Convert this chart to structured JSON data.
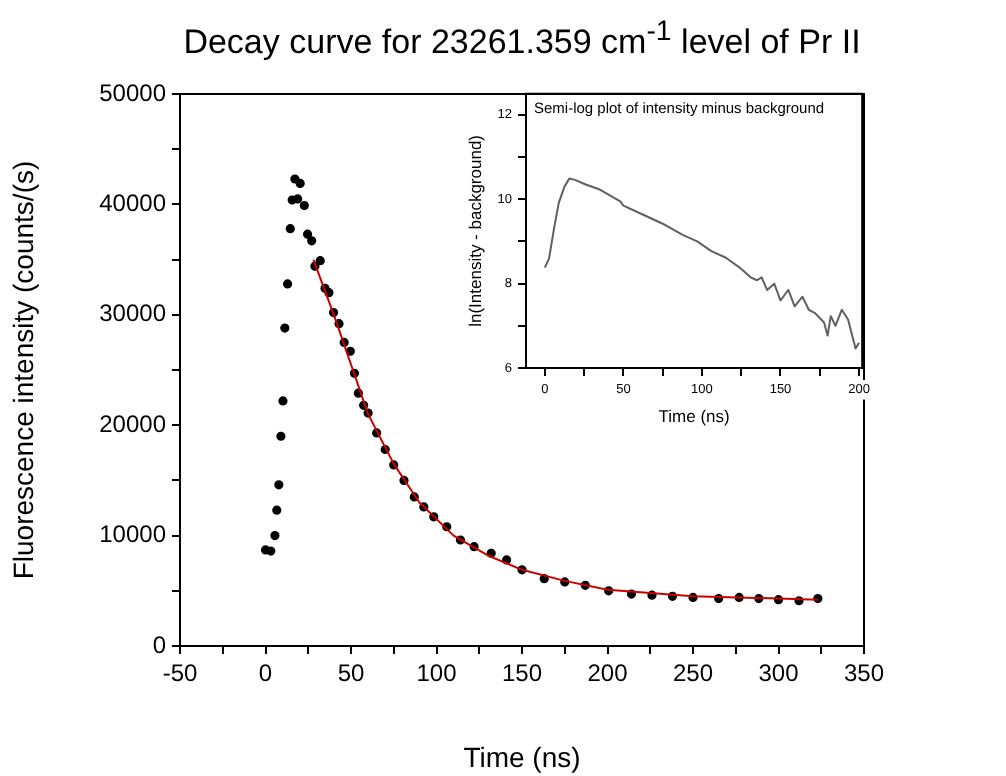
{
  "chart_data": [
    {
      "type": "scatter",
      "title": "Decay curve for 23261.359 cm$^{-1}$ level of Pr II",
      "xlabel": "Time (ns)",
      "ylabel": "Fluorescence intensity (counts/(s)",
      "grid": false,
      "xlim": [
        -50,
        350
      ],
      "xticks": [
        -50,
        {
          "value": -25,
          "label": null
        },
        0,
        {
          "value": 25,
          "label": null
        },
        50,
        {
          "value": 75,
          "label": null
        },
        100,
        {
          "value": 125,
          "label": null
        },
        150,
        {
          "value": 175,
          "label": null
        },
        200,
        {
          "value": 225,
          "label": null
        },
        250,
        {
          "value": 275,
          "label": null
        },
        300,
        {
          "value": 325,
          "label": null
        },
        350
      ],
      "ylim": [
        0,
        50000
      ],
      "yticks": [
        0,
        {
          "value": 5000,
          "label": null
        },
        10000,
        {
          "value": 15000,
          "label": null
        },
        20000,
        {
          "value": 25000,
          "label": null
        },
        30000,
        {
          "value": 35000,
          "label": null
        },
        40000,
        {
          "value": 45000,
          "label": null
        },
        50000
      ],
      "series": [
        {
          "type": "scatter",
          "marker": "circle",
          "color": "#000000",
          "x": [
            0,
            3.1,
            5.5,
            6.6,
            7.8,
            9,
            10.2,
            11.3,
            12.9,
            14.5,
            15.6,
            17.2,
            18.8,
            20.3,
            22.7,
            24.6,
            27,
            28.9,
            32,
            34.8,
            37.1,
            39.8,
            43,
            46,
            49.6,
            52,
            54.3,
            57.4,
            60,
            65,
            70,
            75,
            81,
            87,
            92.6,
            98.4,
            106,
            114,
            122,
            132,
            141,
            150,
            163,
            175,
            187,
            200.7,
            214,
            226,
            238,
            250,
            265,
            277,
            288.5,
            300,
            312,
            323
          ],
          "values": [
            8700,
            8600,
            10000,
            12300,
            14600,
            19000,
            22200,
            28800,
            32800,
            37800,
            40400,
            42300,
            40500,
            41900,
            39900,
            37300,
            36700,
            34400,
            34900,
            32400,
            32000,
            30200,
            29200,
            27500,
            26700,
            24700,
            22900,
            21800,
            21100,
            19300,
            17800,
            16400,
            15000,
            13500,
            12600,
            11700,
            10800,
            9600,
            9000,
            8400,
            7800,
            6900,
            6100,
            5800,
            5500,
            5000,
            4700,
            4600,
            4500,
            4400,
            4300,
            4400,
            4300,
            4200,
            4100,
            4300
          ]
        },
        {
          "type": "line",
          "marker": "none",
          "color": "#cc0000",
          "x": [
            28,
            40,
            50,
            60,
            75,
            90,
            110,
            130,
            150,
            175,
            200,
            250,
            300,
            323
          ],
          "values": [
            35000,
            30000,
            25500,
            21000,
            16500,
            13000,
            10000,
            8200,
            6900,
            5900,
            5100,
            4500,
            4300,
            4200
          ]
        }
      ]
    },
    {
      "type": "line",
      "title": "Semi-log plot of intensity minus background",
      "xlabel": "Time (ns)",
      "ylabel": "ln(Intensity - background)",
      "grid": false,
      "color": "#606060",
      "xlim": [
        -12,
        202
      ],
      "xticks": [
        0,
        {
          "value": 25,
          "label": null
        },
        50,
        {
          "value": 75,
          "label": null
        },
        100,
        {
          "value": 125,
          "label": null
        },
        150,
        {
          "value": 175,
          "label": null
        },
        200
      ],
      "ylim": [
        6,
        12.5
      ],
      "yticks": [
        6,
        {
          "value": 7,
          "label": null
        },
        8,
        {
          "value": 9,
          "label": null
        },
        10,
        {
          "value": 11,
          "label": null
        },
        12
      ],
      "x": [
        0,
        2.7,
        5.8,
        8.9,
        12.5,
        15.6,
        19.2,
        26,
        35,
        48,
        50,
        61.6,
        75,
        88,
        97,
        106,
        115,
        124,
        131,
        135,
        138,
        141.5,
        146,
        150,
        155,
        159,
        164,
        168,
        172,
        177.7,
        180,
        182,
        185,
        189,
        193,
        197.8,
        200
      ],
      "values": [
        8.38,
        8.6,
        9.3,
        9.92,
        10.3,
        10.49,
        10.46,
        10.35,
        10.23,
        9.95,
        9.85,
        9.65,
        9.42,
        9.15,
        9.0,
        8.77,
        8.62,
        8.38,
        8.15,
        8.08,
        8.15,
        7.85,
        8.0,
        7.6,
        7.85,
        7.46,
        7.69,
        7.38,
        7.3,
        7.08,
        6.77,
        7.23,
        7.0,
        7.38,
        7.15,
        6.46,
        6.6
      ]
    }
  ]
}
